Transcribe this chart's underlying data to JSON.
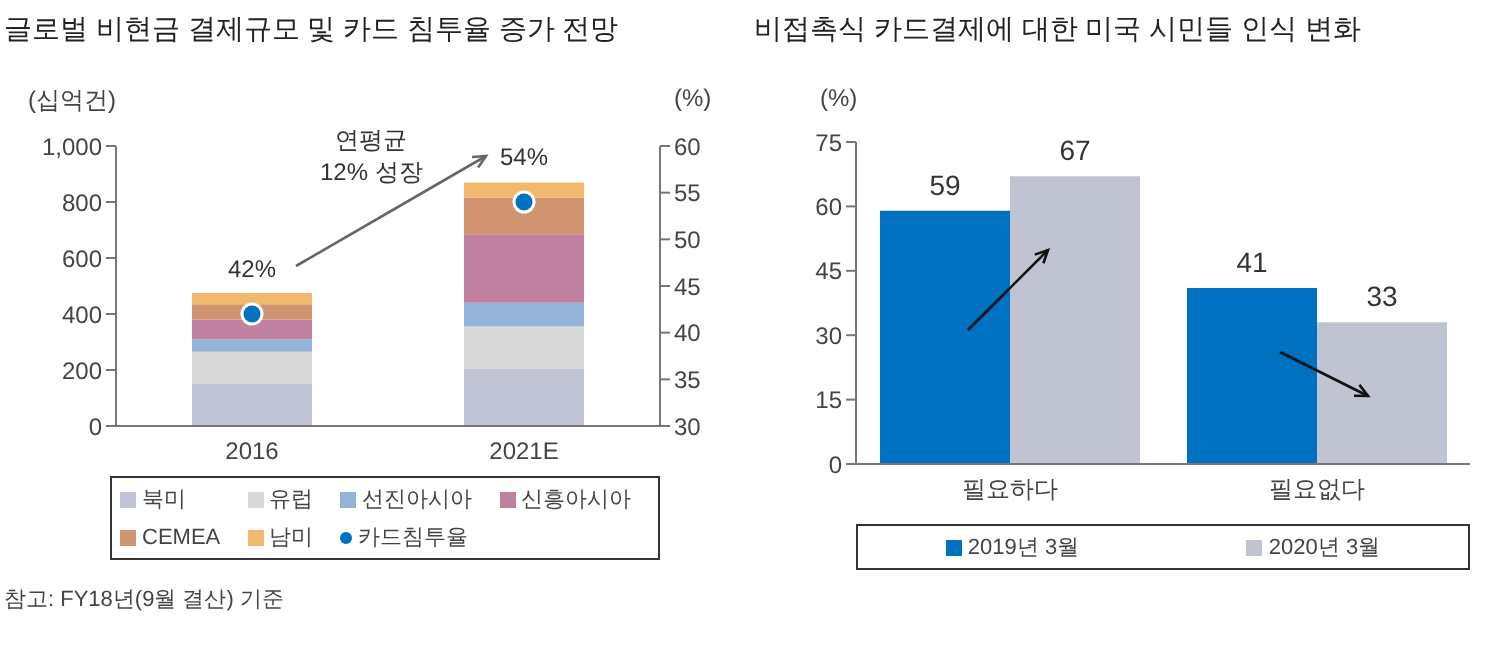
{
  "chart_data": [
    {
      "type": "bar",
      "title": "글로벌 비현금 결제규모 및 카드 침투율 증가 전망",
      "ylabel": "(십억건)",
      "y2label": "(%)",
      "stacked": true,
      "categories": [
        "2016",
        "2021E"
      ],
      "series": [
        {
          "name": "북미",
          "color": "#c0c4d4",
          "values": [
            150,
            205
          ]
        },
        {
          "name": "유럽",
          "color": "#d9d9d9",
          "values": [
            115,
            150
          ]
        },
        {
          "name": "선진아시아",
          "color": "#95b3d7",
          "values": [
            45,
            85
          ]
        },
        {
          "name": "신흥아시아",
          "color": "#c0809f",
          "values": [
            70,
            245
          ]
        },
        {
          "name": "CEMEA",
          "color": "#d09570",
          "values": [
            55,
            130
          ]
        },
        {
          "name": "남미",
          "color": "#f2b870",
          "values": [
            40,
            55
          ]
        },
        {
          "name": "카드침투율",
          "type": "scatter",
          "axis": "y2",
          "color": "#0070c0",
          "values": [
            42,
            54
          ],
          "value_labels": [
            "42%",
            "54%"
          ]
        }
      ],
      "ylim": [
        0,
        1000
      ],
      "yticks": [
        0,
        200,
        400,
        600,
        800,
        {
          "value": 1000,
          "label": "1,000"
        }
      ],
      "y2lim": [
        30,
        60
      ],
      "y2ticks": [
        30,
        35,
        40,
        45,
        50,
        55,
        60
      ],
      "annotations": [
        "연평균\n12% 성장",
        "참고: FY18년(9월 결산) 기준"
      ],
      "legend": "bottom",
      "grid": false
    },
    {
      "type": "bar",
      "title": "비접촉식 카드결제에 대한 미국 시민들 인식 변화",
      "ylabel": "(%)",
      "categories": [
        "필요하다",
        "필요없다"
      ],
      "series": [
        {
          "name": "2019년 3월",
          "color": "#0070c0",
          "values": [
            59,
            41
          ]
        },
        {
          "name": "2020년 3월",
          "color": "#c0c4d2",
          "values": [
            67,
            33
          ]
        }
      ],
      "ylim": [
        0,
        75
      ],
      "yticks": [
        0,
        15,
        30,
        45,
        60,
        75
      ],
      "data_labels": true,
      "legend": "bottom",
      "grid": false
    }
  ]
}
